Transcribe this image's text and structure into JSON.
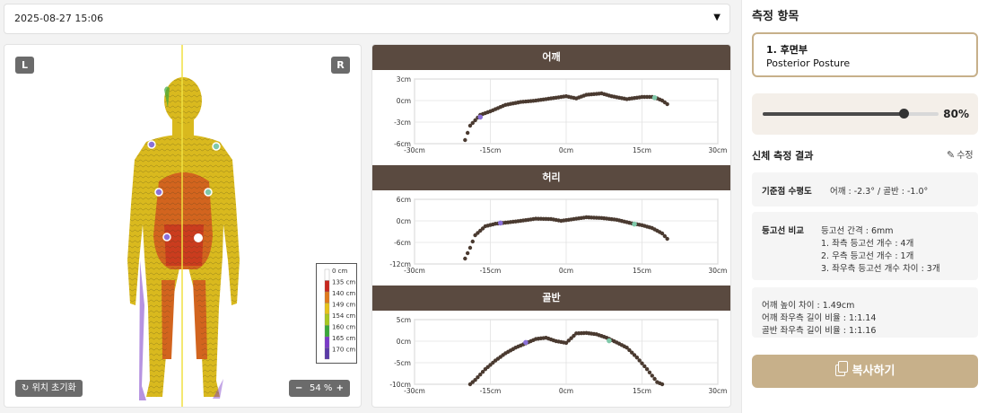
{
  "date_select": {
    "value": "2025-08-27 15:06"
  },
  "body_view": {
    "left_badge": "L",
    "right_badge": "R",
    "reset_label": "위치 초기화",
    "zoom_minus": "−",
    "zoom_plus": "+",
    "zoom_value": "54 %",
    "legend": [
      {
        "label": "0 cm",
        "color": "#ffffff"
      },
      {
        "label": "135 cm",
        "color": "#c8281e"
      },
      {
        "label": "140 cm",
        "color": "#e07a1c"
      },
      {
        "label": "149 cm",
        "color": "#e6c31a"
      },
      {
        "label": "154 cm",
        "color": "#a8c820"
      },
      {
        "label": "160 cm",
        "color": "#3aa83a"
      },
      {
        "label": "165 cm",
        "color": "#7a3ac8"
      },
      {
        "label": "170 cm",
        "color": "#5a3aa8"
      }
    ]
  },
  "sections": [
    {
      "title": "어깨",
      "y_ticks": [
        "3cm",
        "0cm",
        "-3cm",
        "-6cm"
      ]
    },
    {
      "title": "허리",
      "y_ticks": [
        "6cm",
        "0cm",
        "-6cm",
        "-12cm"
      ]
    },
    {
      "title": "골반",
      "y_ticks": [
        "5cm",
        "0cm",
        "-5cm",
        "-10cm"
      ]
    }
  ],
  "x_ticks": [
    "-30cm",
    "-15cm",
    "0cm",
    "15cm",
    "30cm"
  ],
  "chart_data": [
    {
      "type": "scatter",
      "title": "어깨",
      "xlim": [
        -30,
        30
      ],
      "ylim": [
        -6,
        4
      ],
      "x": [
        -20,
        -19,
        -17,
        -15,
        -12,
        -9,
        -6,
        -3,
        0,
        2,
        4,
        7,
        9,
        12,
        15,
        17,
        18,
        19,
        20
      ],
      "y": [
        -5.5,
        -3.5,
        -2.0,
        -1.5,
        -0.6,
        -0.2,
        0.0,
        0.3,
        0.6,
        0.3,
        0.8,
        1.0,
        0.6,
        0.2,
        0.5,
        0.5,
        0.3,
        0.0,
        -0.5
      ],
      "markers": [
        {
          "x": -17,
          "y": -2.3,
          "color": "#8a70d8"
        },
        {
          "x": 17.5,
          "y": 0.4,
          "color": "#7fc8a9"
        }
      ]
    },
    {
      "type": "scatter",
      "title": "허리",
      "xlim": [
        -30,
        30
      ],
      "ylim": [
        -12,
        6
      ],
      "x": [
        -20,
        -19,
        -18,
        -16,
        -14,
        -12,
        -9,
        -6,
        -3,
        -1,
        1,
        4,
        7,
        10,
        13,
        15,
        17,
        19,
        20
      ],
      "y": [
        -10.5,
        -7.5,
        -4.0,
        -1.5,
        -0.8,
        -0.5,
        0.0,
        0.6,
        0.5,
        0.0,
        0.4,
        1.0,
        0.8,
        0.3,
        -0.7,
        -1.2,
        -2.0,
        -3.5,
        -5.0
      ],
      "markers": [
        {
          "x": -13,
          "y": -0.6,
          "color": "#8a70d8"
        },
        {
          "x": 13.5,
          "y": -0.9,
          "color": "#7fc8a9"
        }
      ]
    },
    {
      "type": "scatter",
      "title": "골반",
      "xlim": [
        -30,
        30
      ],
      "ylim": [
        -10,
        6
      ],
      "x": [
        -19,
        -18,
        -16,
        -14,
        -12,
        -10,
        -8,
        -6,
        -4,
        -2,
        0,
        2,
        4,
        6,
        8,
        10,
        12,
        14,
        16,
        18,
        19
      ],
      "y": [
        -10.0,
        -9.0,
        -6.5,
        -4.5,
        -2.8,
        -1.5,
        -0.5,
        0.5,
        0.8,
        0.0,
        -0.4,
        1.8,
        1.9,
        1.6,
        0.8,
        -0.3,
        -1.5,
        -3.8,
        -6.5,
        -9.5,
        -10.0
      ],
      "markers": [
        {
          "x": -8,
          "y": -0.3,
          "color": "#8a70d8"
        },
        {
          "x": 8.5,
          "y": 0.1,
          "color": "#7fc8a9"
        }
      ]
    }
  ],
  "sidebar": {
    "title": "측정 항목",
    "posture": {
      "number_label": "1. 후면부",
      "name": "Posterior Posture"
    },
    "slider": {
      "value": 0.8,
      "label": "80%"
    },
    "results_title": "신체 측정 결과",
    "edit_label": "수정",
    "baseline": {
      "label": "기준점 수평도",
      "value": "어깨 : -2.3° / 골반 : -1.0°"
    },
    "contour": {
      "label": "등고선 비교",
      "lines": [
        "등고선 간격 : 6mm",
        "1. 좌측 등고선 개수 : 4개",
        "2. 우측 등고선 개수 : 1개",
        "3. 좌우측 등고선 개수 차이 : 3개"
      ]
    },
    "summary": [
      "어깨 높이 차이 : 1.49cm",
      "어깨 좌우측 길이 비율 : 1:1.14",
      "골반 좌우측 길이 비율 : 1:1.16"
    ],
    "copy_label": "복사하기"
  },
  "colors": {
    "accent": "#c7b08a",
    "header_brown": "#5a4a40",
    "body_yellow": "#d9b91e",
    "body_orange": "#d2641e"
  }
}
